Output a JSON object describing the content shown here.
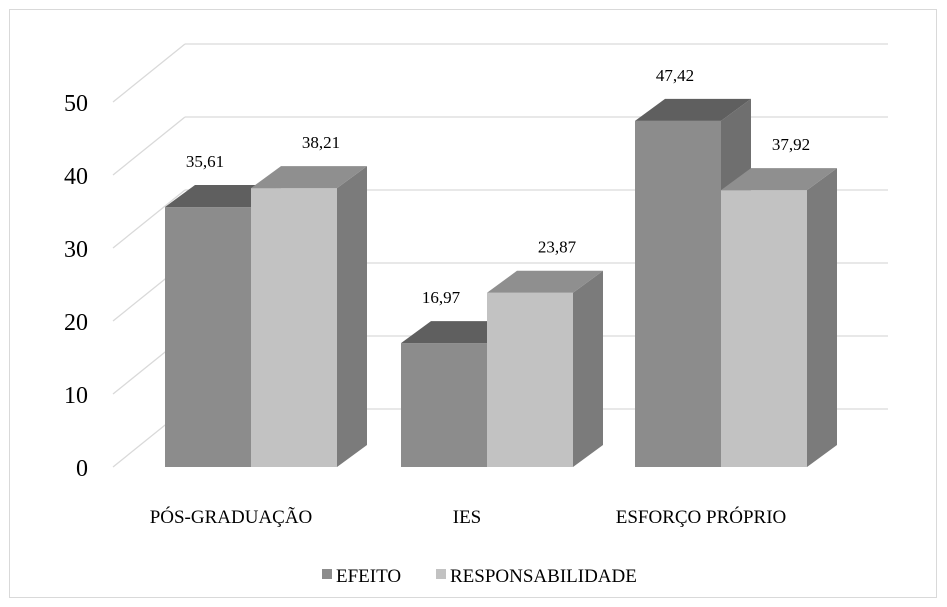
{
  "chart_data": {
    "type": "bar",
    "style": "3d-clustered-column",
    "categories": [
      "PÓS-GRADUAÇÃO",
      "IES",
      "ESFORÇO PRÓPRIO"
    ],
    "series": [
      {
        "name": "EFEITO",
        "values": [
          35.61,
          16.97,
          47.42
        ],
        "labels": [
          "35,61",
          "16,97",
          "47,42"
        ],
        "color": "#8c8c8c",
        "side_color": "#6f6f6f",
        "top_color": "#5f5f5f"
      },
      {
        "name": "RESPONSABILIDADE",
        "values": [
          38.21,
          23.87,
          37.92
        ],
        "labels": [
          "38,21",
          "23,87",
          "37,92"
        ],
        "color": "#c2c2c2",
        "side_color": "#7b7b7b",
        "top_color": "#8f8f8f"
      }
    ],
    "y_ticks": [
      "0",
      "10",
      "20",
      "30",
      "40",
      "50"
    ],
    "ylim": [
      0,
      50
    ],
    "grid": true,
    "legend_position": "bottom"
  }
}
